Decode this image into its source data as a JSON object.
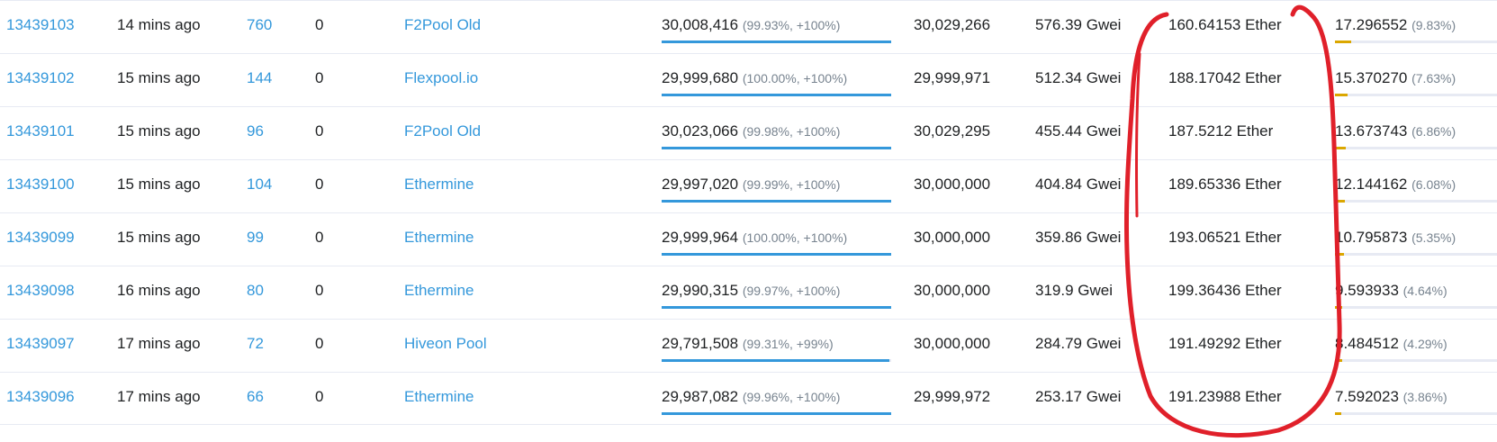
{
  "rows": [
    {
      "block": "13439103",
      "age": "14 mins ago",
      "txn": "760",
      "uncles": "0",
      "miner": "F2Pool Old",
      "gas_used": "30,008,416",
      "gas_used_pct": "(99.93%, +100%)",
      "gas_used_frac": 0.9993,
      "gas_limit": "30,029,266",
      "base_fee": "576.39 Gwei",
      "reward": "160.64153 Ether",
      "burnt": "17.296552",
      "burnt_pct": "(9.83%)",
      "burnt_frac": 0.0983
    },
    {
      "block": "13439102",
      "age": "15 mins ago",
      "txn": "144",
      "uncles": "0",
      "miner": "Flexpool.io",
      "gas_used": "29,999,680",
      "gas_used_pct": "(100.00%, +100%)",
      "gas_used_frac": 1.0,
      "gas_limit": "29,999,971",
      "base_fee": "512.34 Gwei",
      "reward": "188.17042 Ether",
      "burnt": "15.370270",
      "burnt_pct": "(7.63%)",
      "burnt_frac": 0.0763
    },
    {
      "block": "13439101",
      "age": "15 mins ago",
      "txn": "96",
      "uncles": "0",
      "miner": "F2Pool Old",
      "gas_used": "30,023,066",
      "gas_used_pct": "(99.98%, +100%)",
      "gas_used_frac": 0.9998,
      "gas_limit": "30,029,295",
      "base_fee": "455.44 Gwei",
      "reward": "187.5212 Ether",
      "burnt": "13.673743",
      "burnt_pct": "(6.86%)",
      "burnt_frac": 0.0686
    },
    {
      "block": "13439100",
      "age": "15 mins ago",
      "txn": "104",
      "uncles": "0",
      "miner": "Ethermine",
      "gas_used": "29,997,020",
      "gas_used_pct": "(99.99%, +100%)",
      "gas_used_frac": 0.9999,
      "gas_limit": "30,000,000",
      "base_fee": "404.84 Gwei",
      "reward": "189.65336 Ether",
      "burnt": "12.144162",
      "burnt_pct": "(6.08%)",
      "burnt_frac": 0.0608
    },
    {
      "block": "13439099",
      "age": "15 mins ago",
      "txn": "99",
      "uncles": "0",
      "miner": "Ethermine",
      "gas_used": "29,999,964",
      "gas_used_pct": "(100.00%, +100%)",
      "gas_used_frac": 1.0,
      "gas_limit": "30,000,000",
      "base_fee": "359.86 Gwei",
      "reward": "193.06521 Ether",
      "burnt": "10.795873",
      "burnt_pct": "(5.35%)",
      "burnt_frac": 0.0535
    },
    {
      "block": "13439098",
      "age": "16 mins ago",
      "txn": "80",
      "uncles": "0",
      "miner": "Ethermine",
      "gas_used": "29,990,315",
      "gas_used_pct": "(99.97%, +100%)",
      "gas_used_frac": 0.9997,
      "gas_limit": "30,000,000",
      "base_fee": "319.9 Gwei",
      "reward": "199.36436 Ether",
      "burnt": "9.593933",
      "burnt_pct": "(4.64%)",
      "burnt_frac": 0.0464
    },
    {
      "block": "13439097",
      "age": "17 mins ago",
      "txn": "72",
      "uncles": "0",
      "miner": "Hiveon Pool",
      "gas_used": "29,791,508",
      "gas_used_pct": "(99.31%, +99%)",
      "gas_used_frac": 0.9931,
      "gas_limit": "30,000,000",
      "base_fee": "284.79 Gwei",
      "reward": "191.49292 Ether",
      "burnt": "8.484512",
      "burnt_pct": "(4.29%)",
      "burnt_frac": 0.0429
    },
    {
      "block": "13439096",
      "age": "17 mins ago",
      "txn": "66",
      "uncles": "0",
      "miner": "Ethermine",
      "gas_used": "29,987,082",
      "gas_used_pct": "(99.96%, +100%)",
      "gas_used_frac": 0.9996,
      "gas_limit": "29,999,972",
      "base_fee": "253.17 Gwei",
      "reward": "191.23988 Ether",
      "burnt": "7.592023",
      "burnt_pct": "(3.86%)",
      "burnt_frac": 0.0386
    }
  ],
  "colors": {
    "link": "#3498db",
    "gas_bar": "#3498db",
    "burn_bar": "#dba700",
    "annotation": "#e0202a"
  }
}
